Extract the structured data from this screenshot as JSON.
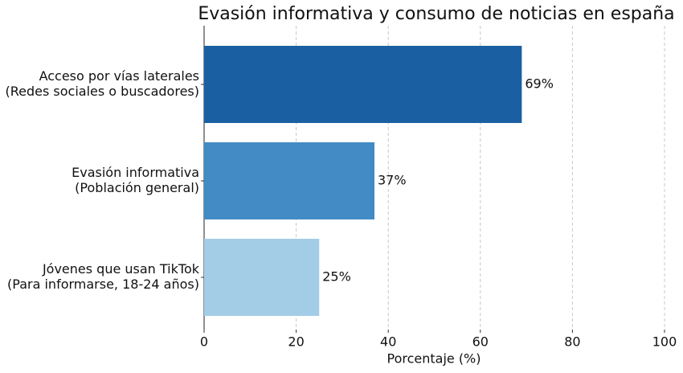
{
  "chart_data": {
    "type": "barh",
    "title": "Evasión informativa y consumo de noticias en españa",
    "xlabel": "Porcentaje (%)",
    "categories": [
      [
        "Acceso por vías laterales",
        "(Redes sociales o buscadores)"
      ],
      [
        "Evasión informativa",
        "(Población general)"
      ],
      [
        "Jóvenes que usan TikTok",
        "(Para informarse, 18-24 años)"
      ]
    ],
    "values": [
      69,
      37,
      25
    ],
    "value_labels": [
      "69%",
      "37%",
      "25%"
    ],
    "colors": [
      "#1b5fa3",
      "#428bc4",
      "#a3cde6"
    ],
    "xlim": [
      0,
      100
    ],
    "xticks": [
      0,
      20,
      40,
      60,
      80,
      100
    ],
    "grid": true
  }
}
